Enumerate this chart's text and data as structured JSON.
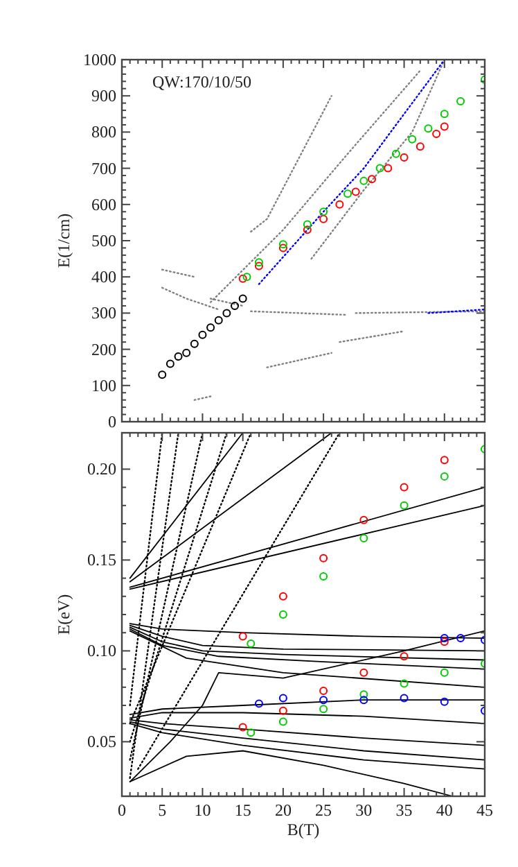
{
  "chart_data": [
    {
      "type": "line",
      "ylabel": "E(1/cm)",
      "annotations": [
        "QW:170/10/50"
      ],
      "xlim": [
        0,
        45
      ],
      "xticks": [
        0,
        5,
        10,
        15,
        20,
        25,
        30,
        35,
        40,
        45
      ],
      "ylim": [
        0,
        1000
      ],
      "yticks": [
        0,
        100,
        200,
        300,
        400,
        500,
        600,
        700,
        800,
        900,
        1000
      ],
      "tick_labels": "y",
      "grid": false,
      "series": [
        {
          "line_style": "dotted",
          "color": "#808080",
          "x": [
            16,
            18,
            22,
            26
          ],
          "values": [
            525,
            560,
            730,
            900
          ]
        },
        {
          "line_style": "dotted",
          "color": "#808080",
          "x": [
            11,
            20,
            28,
            37
          ],
          "values": [
            330,
            530,
            740,
            970
          ]
        },
        {
          "line_style": "dotted",
          "color": "#808080",
          "x": [
            23.5,
            30,
            36,
            40
          ],
          "values": [
            450,
            640,
            800,
            1000
          ]
        },
        {
          "line_style": "dotted",
          "color": "#808080",
          "x": [
            5,
            9
          ],
          "values": [
            420,
            400
          ]
        },
        {
          "line_style": "dotted",
          "color": "#808080",
          "x": [
            5,
            8,
            12
          ],
          "values": [
            370,
            340,
            310
          ]
        },
        {
          "line_style": "dotted",
          "color": "#808080",
          "x": [
            11,
            15
          ],
          "values": [
            340,
            320
          ]
        },
        {
          "line_style": "dotted",
          "color": "#808080",
          "x": [
            16,
            28
          ],
          "values": [
            305,
            295
          ]
        },
        {
          "line_style": "dotted",
          "color": "#808080",
          "x": [
            29,
            45
          ],
          "values": [
            300,
            305
          ]
        },
        {
          "line_style": "dotted",
          "color": "#808080",
          "x": [
            18,
            26
          ],
          "values": [
            150,
            190
          ]
        },
        {
          "line_style": "dotted",
          "color": "#808080",
          "x": [
            27,
            35
          ],
          "values": [
            220,
            250
          ]
        },
        {
          "line_style": "dotted",
          "color": "#808080",
          "x": [
            9,
            11
          ],
          "values": [
            60,
            70
          ]
        },
        {
          "line_style": "dotted",
          "color": "#0000ff",
          "x": [
            17,
            25,
            30,
            35,
            40
          ],
          "values": [
            380,
            580,
            700,
            850,
            1000
          ]
        },
        {
          "line_style": "dotted",
          "color": "#0000ff",
          "x": [
            38,
            45
          ],
          "values": [
            300,
            310
          ]
        },
        {
          "type": "scatter",
          "marker": "circle",
          "color": "#000000",
          "x": [
            5,
            6,
            7,
            8,
            9,
            10,
            11,
            12,
            13,
            14,
            15
          ],
          "values": [
            130,
            160,
            180,
            190,
            215,
            240,
            260,
            280,
            300,
            320,
            340
          ]
        },
        {
          "type": "scatter",
          "marker": "circle",
          "color": "#ff0000",
          "x": [
            15,
            17,
            20,
            23,
            25,
            27,
            29,
            31,
            33,
            35,
            37,
            39,
            40
          ],
          "values": [
            395,
            430,
            480,
            530,
            560,
            600,
            635,
            670,
            700,
            730,
            760,
            795,
            815
          ]
        },
        {
          "type": "scatter",
          "marker": "circle",
          "color": "#00cc00",
          "x": [
            15.5,
            17,
            20,
            23,
            25,
            28,
            30,
            32,
            34,
            36,
            38,
            40,
            42,
            45
          ],
          "values": [
            400,
            440,
            490,
            545,
            580,
            630,
            665,
            700,
            740,
            780,
            810,
            850,
            885,
            945
          ]
        }
      ]
    },
    {
      "type": "line",
      "xlabel": "B(T)",
      "ylabel": "E(eV)",
      "xlim": [
        0,
        45
      ],
      "xticks": [
        0,
        5,
        10,
        15,
        20,
        25,
        30,
        35,
        40,
        45
      ],
      "ylim": [
        0.02,
        0.22
      ],
      "yticks": [
        0.05,
        {
          "value": 0.1,
          "label": "0.10"
        },
        0.15,
        {
          "value": 0.2,
          "label": "0.20"
        }
      ],
      "grid": false,
      "series": [
        {
          "line_style": "solid",
          "color": "#000000",
          "x": [
            1,
            45
          ],
          "values": [
            0.135,
            0.19
          ]
        },
        {
          "line_style": "solid",
          "color": "#000000",
          "x": [
            1,
            45
          ],
          "values": [
            0.134,
            0.18
          ]
        },
        {
          "line_style": "solid",
          "color": "#000000",
          "x": [
            1,
            26
          ],
          "values": [
            0.138,
            0.22
          ]
        },
        {
          "line_style": "solid",
          "color": "#000000",
          "x": [
            1,
            15
          ],
          "values": [
            0.14,
            0.22
          ]
        },
        {
          "line_style": "dotted",
          "color": "#000000",
          "x": [
            1,
            16
          ],
          "values": [
            0.06,
            0.22
          ]
        },
        {
          "line_style": "dotted",
          "color": "#000000",
          "x": [
            1,
            13
          ],
          "values": [
            0.05,
            0.22
          ]
        },
        {
          "line_style": "dotted",
          "color": "#000000",
          "x": [
            1,
            10
          ],
          "values": [
            0.04,
            0.22
          ]
        },
        {
          "line_style": "dotted",
          "color": "#000000",
          "x": [
            1,
            7
          ],
          "values": [
            0.03,
            0.22
          ]
        },
        {
          "line_style": "dotted",
          "color": "#000000",
          "x": [
            1,
            5
          ],
          "values": [
            0.07,
            0.22
          ]
        },
        {
          "line_style": "dotted",
          "color": "#000000",
          "x": [
            2,
            27
          ],
          "values": [
            0.035,
            0.22
          ]
        },
        {
          "line_style": "solid",
          "color": "#000000",
          "x": [
            1,
            5,
            15,
            30,
            45
          ],
          "values": [
            0.115,
            0.112,
            0.11,
            0.108,
            0.107
          ]
        },
        {
          "line_style": "solid",
          "color": "#000000",
          "x": [
            1,
            5,
            10,
            20,
            45
          ],
          "values": [
            0.114,
            0.108,
            0.103,
            0.101,
            0.1
          ]
        },
        {
          "line_style": "solid",
          "color": "#000000",
          "x": [
            1,
            5,
            10,
            20,
            45
          ],
          "values": [
            0.113,
            0.105,
            0.1,
            0.098,
            0.095
          ]
        },
        {
          "line_style": "solid",
          "color": "#000000",
          "x": [
            1,
            5,
            12,
            25,
            45
          ],
          "values": [
            0.112,
            0.103,
            0.097,
            0.094,
            0.09
          ]
        },
        {
          "line_style": "solid",
          "color": "#000000",
          "x": [
            1,
            8,
            20,
            45
          ],
          "values": [
            0.111,
            0.096,
            0.088,
            0.08
          ]
        },
        {
          "line_style": "solid",
          "color": "#000000",
          "x": [
            1,
            5,
            15,
            30,
            45
          ],
          "values": [
            0.065,
            0.068,
            0.07,
            0.073,
            0.073
          ]
        },
        {
          "line_style": "solid",
          "color": "#000000",
          "x": [
            1,
            5,
            15,
            30,
            45
          ],
          "values": [
            0.063,
            0.066,
            0.066,
            0.064,
            0.06
          ]
        },
        {
          "line_style": "solid",
          "color": "#000000",
          "x": [
            1,
            5,
            15,
            30,
            45
          ],
          "values": [
            0.062,
            0.06,
            0.057,
            0.052,
            0.048
          ]
        },
        {
          "line_style": "solid",
          "color": "#000000",
          "x": [
            1,
            5,
            15,
            30,
            45
          ],
          "values": [
            0.061,
            0.057,
            0.052,
            0.045,
            0.04
          ]
        },
        {
          "line_style": "solid",
          "color": "#000000",
          "x": [
            1,
            5,
            15,
            30,
            45
          ],
          "values": [
            0.06,
            0.055,
            0.048,
            0.04,
            0.035
          ]
        },
        {
          "line_style": "solid",
          "color": "#000000",
          "x": [
            1,
            8,
            15,
            25,
            35,
            41
          ],
          "values": [
            0.028,
            0.042,
            0.045,
            0.037,
            0.027,
            0.02
          ]
        },
        {
          "line_style": "solid",
          "color": "#000000",
          "x": [
            1,
            6,
            10,
            12,
            20,
            35,
            45
          ],
          "values": [
            0.028,
            0.05,
            0.07,
            0.088,
            0.085,
            0.1,
            0.111
          ]
        },
        {
          "type": "scatter",
          "marker": "circle",
          "color": "#ff0000",
          "x": [
            15,
            20,
            25,
            30,
            35,
            40
          ],
          "values": [
            0.108,
            0.13,
            0.151,
            0.172,
            0.19,
            0.205
          ]
        },
        {
          "type": "scatter",
          "marker": "circle",
          "color": "#00cc00",
          "x": [
            16,
            20,
            25,
            30,
            35,
            40,
            45
          ],
          "values": [
            0.104,
            0.12,
            0.141,
            0.162,
            0.18,
            0.196,
            0.211
          ]
        },
        {
          "type": "scatter",
          "marker": "circle",
          "color": "#ff0000",
          "x": [
            15,
            20,
            25,
            30,
            35,
            40
          ],
          "values": [
            0.058,
            0.067,
            0.078,
            0.088,
            0.097,
            0.105
          ]
        },
        {
          "type": "scatter",
          "marker": "circle",
          "color": "#00cc00",
          "x": [
            16,
            20,
            25,
            30,
            35,
            40,
            45
          ],
          "values": [
            0.055,
            0.061,
            0.068,
            0.076,
            0.082,
            0.088,
            0.093
          ]
        },
        {
          "type": "scatter",
          "marker": "circle",
          "color": "#0000ff",
          "x": [
            17,
            20,
            25,
            30,
            35,
            40,
            45
          ],
          "values": [
            0.071,
            0.074,
            0.073,
            0.073,
            0.074,
            0.072,
            0.067
          ]
        },
        {
          "type": "scatter",
          "marker": "circle",
          "color": "#0000ff",
          "x": [
            40,
            42,
            45
          ],
          "values": [
            0.107,
            0.107,
            0.106
          ]
        }
      ]
    }
  ]
}
